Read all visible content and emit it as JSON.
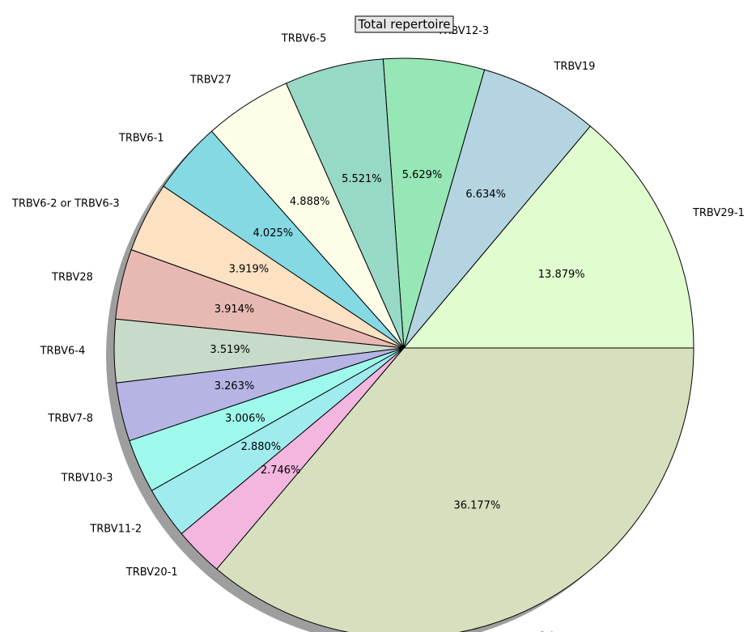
{
  "chart_data": {
    "type": "pie",
    "title": "Total repertoire",
    "start_angle_deg": 0,
    "direction": "counterclockwise",
    "shadow": true,
    "slices": [
      {
        "label": "TRBV29-1",
        "value": 13.879,
        "pct_label": "13.879%",
        "color": "#e1fccf"
      },
      {
        "label": "TRBV19",
        "value": 6.634,
        "pct_label": "6.634%",
        "color": "#b4d4e2"
      },
      {
        "label": "TRBV12-3",
        "value": 5.629,
        "pct_label": "5.629%",
        "color": "#97e6b6"
      },
      {
        "label": "TRBV6-5",
        "value": 5.521,
        "pct_label": "5.521%",
        "color": "#98d8c6"
      },
      {
        "label": "TRBV27",
        "value": 4.888,
        "pct_label": "4.888%",
        "color": "#fefde8"
      },
      {
        "label": "TRBV6-1",
        "value": 4.025,
        "pct_label": "4.025%",
        "color": "#84d9e2"
      },
      {
        "label": "TRBV6-2 or TRBV6-3",
        "value": 3.919,
        "pct_label": "3.919%",
        "color": "#fce1c3"
      },
      {
        "label": "TRBV28",
        "value": 3.914,
        "pct_label": "3.914%",
        "color": "#e8b9b3"
      },
      {
        "label": "TRBV6-4",
        "value": 3.519,
        "pct_label": "3.519%",
        "color": "#c8dbc8"
      },
      {
        "label": "TRBV7-8",
        "value": 3.263,
        "pct_label": "3.263%",
        "color": "#b5b4e4"
      },
      {
        "label": "TRBV10-3",
        "value": 3.006,
        "pct_label": "3.006%",
        "color": "#9ff8ec"
      },
      {
        "label": "TRBV11-2",
        "value": 2.88,
        "pct_label": "2.880%",
        "color": "#a0ebee"
      },
      {
        "label": "TRBV20-1",
        "value": 2.746,
        "pct_label": "2.746%",
        "color": "#f2b6df"
      },
      {
        "label": "Others",
        "value": 36.177,
        "pct_label": "36.177%",
        "color": "#d7e0be"
      }
    ]
  }
}
